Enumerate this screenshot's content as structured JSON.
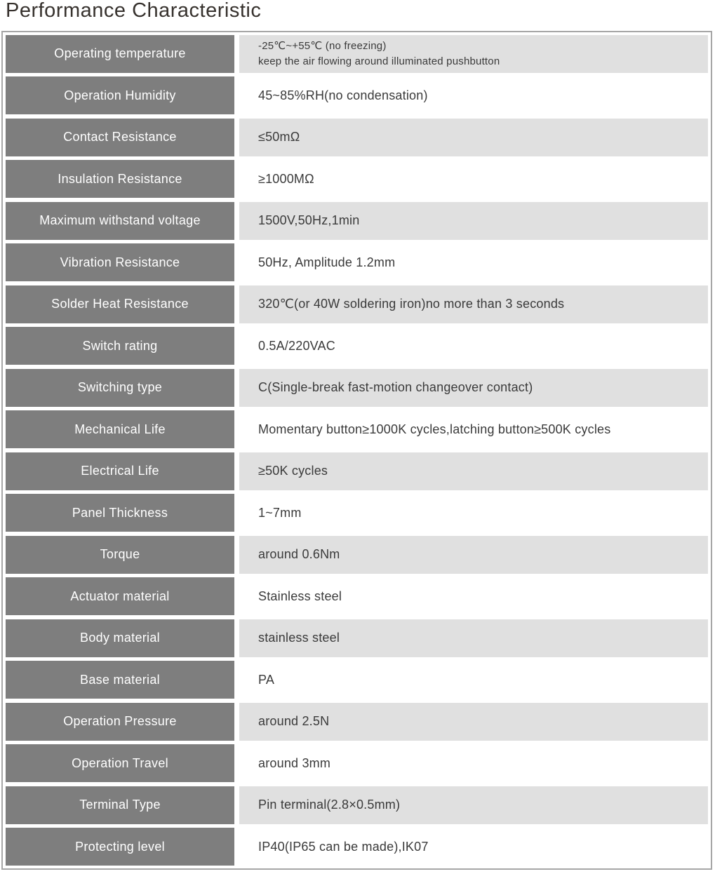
{
  "page": {
    "title": "Performance Characteristic"
  },
  "colors": {
    "title_text": "#37322e",
    "table_border": "#a6a6a6",
    "label_cell_bg": "#7e7e7e",
    "label_cell_text": "#ffffff",
    "shaded_value_bg": "#e0e0e0",
    "value_text": "#3a3a3a"
  },
  "table": {
    "rows": [
      {
        "label": "Operating temperature",
        "value": "-25℃~+55℃ (no freezing)\nkeep the air flowing around illuminated pushbutton"
      },
      {
        "label": "Operation Humidity",
        "value": "45~85%RH(no condensation)"
      },
      {
        "label": "Contact Resistance",
        "value": "≤50mΩ"
      },
      {
        "label": "Insulation Resistance",
        "value": "≥1000MΩ"
      },
      {
        "label": "Maximum withstand voltage",
        "value": "1500V,50Hz,1min"
      },
      {
        "label": "Vibration Resistance",
        "value": "50Hz, Amplitude 1.2mm"
      },
      {
        "label": "Solder Heat Resistance",
        "value": "320℃(or 40W soldering iron)no more than 3 seconds"
      },
      {
        "label": "Switch rating",
        "value": "0.5A/220VAC"
      },
      {
        "label": "Switching type",
        "value": "C(Single-break fast-motion changeover contact)"
      },
      {
        "label": "Mechanical Life",
        "value": "Momentary button≥1000K cycles,latching button≥500K cycles"
      },
      {
        "label": "Electrical Life",
        "value": "≥50K cycles"
      },
      {
        "label": "Panel Thickness",
        "value": "1~7mm"
      },
      {
        "label": "Torque",
        "value": "around 0.6Nm"
      },
      {
        "label": "Actuator material",
        "value": "Stainless steel"
      },
      {
        "label": "Body material",
        "value": "stainless steel"
      },
      {
        "label": "Base material",
        "value": "PA"
      },
      {
        "label": "Operation Pressure",
        "value": "around 2.5N"
      },
      {
        "label": "Operation Travel",
        "value": "around 3mm"
      },
      {
        "label": "Terminal Type",
        "value": "Pin terminal(2.8×0.5mm)"
      },
      {
        "label": "Protecting level",
        "value": "IP40(IP65 can be made),IK07"
      }
    ]
  }
}
